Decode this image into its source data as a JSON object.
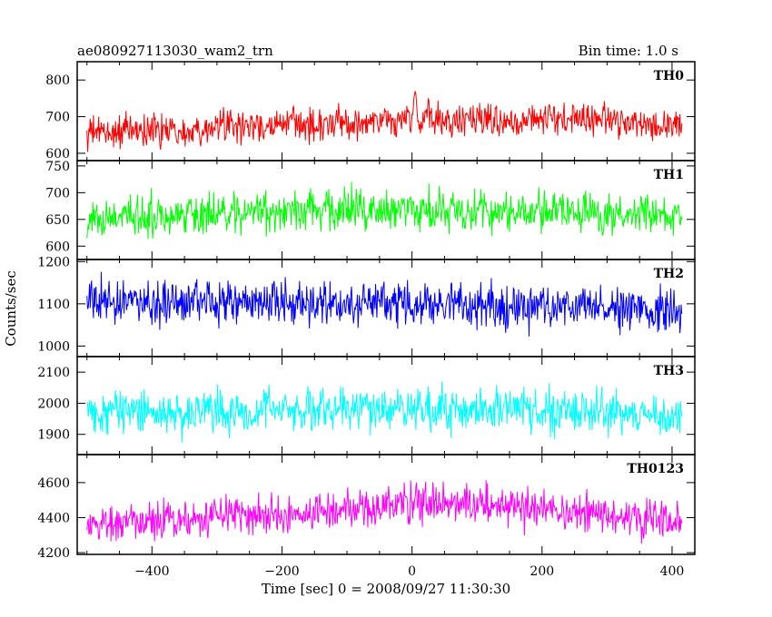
{
  "header": {
    "title": "ae080927113030_wam2_trn",
    "bin_time": "Bin time: 1.0 s"
  },
  "chart_data": {
    "type": "line",
    "title": "ae080927113030_wam2_trn",
    "subtitle": "Bin time: 1.0 s",
    "xlabel": "Time [sec] 0 = 2008/09/27 11:30:30",
    "ylabel": "Counts/sec",
    "xlim": [
      -515,
      435
    ],
    "x_range": [
      -500,
      415
    ],
    "x_ticks": [
      -400,
      -200,
      0,
      200,
      400
    ],
    "x_tick_labels": [
      "−400",
      "−200",
      "0",
      "200",
      "400"
    ],
    "grid": false,
    "panels": [
      {
        "name": "TH0",
        "color": "#ff0000",
        "ylim": [
          580,
          850
        ],
        "y_ticks": [
          600,
          700,
          800
        ],
        "y_tick_labels": [
          "600",
          "700",
          "800"
        ],
        "baseline": 660,
        "noise_amplitude": 28,
        "trend": [
          [
            -500,
            655
          ],
          [
            -300,
            670
          ],
          [
            -100,
            680
          ],
          [
            0,
            690
          ],
          [
            300,
            692
          ],
          [
            415,
            675
          ]
        ],
        "peaks": [
          [
            5,
            780
          ],
          [
            -10,
            730
          ],
          [
            25,
            740
          ]
        ]
      },
      {
        "name": "TH1",
        "color": "#00ff00",
        "ylim": [
          575,
          760
        ],
        "y_ticks": [
          600,
          650,
          700,
          750
        ],
        "y_tick_labels": [
          "600",
          "650",
          "700",
          "750"
        ],
        "baseline": 660,
        "noise_amplitude": 24,
        "trend": [
          [
            -500,
            650
          ],
          [
            -300,
            662
          ],
          [
            0,
            668
          ],
          [
            200,
            665
          ],
          [
            415,
            655
          ]
        ],
        "peaks": []
      },
      {
        "name": "TH2",
        "color": "#0000ff",
        "ylim": [
          975,
          1205
        ],
        "y_ticks": [
          1000,
          1100,
          1200
        ],
        "y_tick_labels": [
          "1000",
          "1100",
          "1200"
        ],
        "baseline": 1100,
        "noise_amplitude": 32,
        "trend": [
          [
            -500,
            1105
          ],
          [
            0,
            1100
          ],
          [
            300,
            1090
          ],
          [
            415,
            1075
          ]
        ],
        "peaks": []
      },
      {
        "name": "TH3",
        "color": "#00ffff",
        "ylim": [
          1835,
          2150
        ],
        "y_ticks": [
          1900,
          2000,
          2100
        ],
        "y_tick_labels": [
          "1900",
          "2000",
          "2100"
        ],
        "baseline": 1975,
        "noise_amplitude": 45,
        "trend": [
          [
            -500,
            1970
          ],
          [
            0,
            1985
          ],
          [
            415,
            1960
          ]
        ],
        "peaks": []
      },
      {
        "name": "TH0123",
        "color": "#ff00ff",
        "ylim": [
          4190,
          4760
        ],
        "y_ticks": [
          4200,
          4400,
          4600
        ],
        "y_tick_labels": [
          "4200",
          "4400",
          "4600"
        ],
        "baseline": 4380,
        "noise_amplitude": 70,
        "trend": [
          [
            -500,
            4360
          ],
          [
            -200,
            4420
          ],
          [
            0,
            4470
          ],
          [
            100,
            4480
          ],
          [
            300,
            4420
          ],
          [
            415,
            4370
          ]
        ],
        "peaks": [
          [
            5,
            4650
          ],
          [
            20,
            4600
          ]
        ]
      }
    ]
  }
}
